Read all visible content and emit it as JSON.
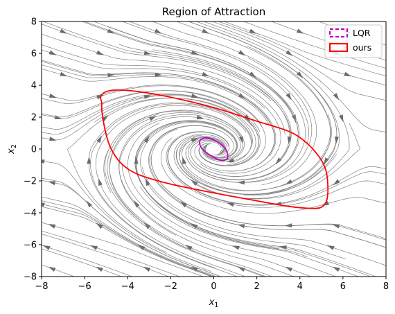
{
  "chart_data": {
    "type": "line",
    "title": "Region of Attraction",
    "xlabel_base": "x",
    "xlabel_sub": "1",
    "ylabel_base": "x",
    "ylabel_sub": "2",
    "xlim": [
      -8,
      8
    ],
    "ylim": [
      -8,
      8
    ],
    "xticks": [
      -8,
      -6,
      -4,
      -2,
      0,
      2,
      4,
      6,
      8
    ],
    "yticks": [
      -8,
      -6,
      -4,
      -2,
      0,
      2,
      4,
      6,
      8
    ],
    "grid": false,
    "legend_position": "top-right",
    "streamlines": {
      "color": "#808080",
      "arrow_color": "#6b6b6b"
    },
    "series": [
      {
        "name": "LQR",
        "color": "#bf00bf",
        "style": "dashed",
        "points": [
          [
            0.65,
            -0.45
          ],
          [
            0.62,
            -0.2
          ],
          [
            0.45,
            0.15
          ],
          [
            0.1,
            0.5
          ],
          [
            -0.3,
            0.7
          ],
          [
            -0.6,
            0.6
          ],
          [
            -0.65,
            0.3
          ],
          [
            -0.5,
            -0.05
          ],
          [
            -0.1,
            -0.45
          ],
          [
            0.3,
            -0.7
          ],
          [
            0.6,
            -0.65
          ],
          [
            0.65,
            -0.45
          ]
        ]
      },
      {
        "name": "ours",
        "color": "#ff0000",
        "style": "solid",
        "points": [
          [
            -5.2,
            2.9
          ],
          [
            -5.25,
            3.3
          ],
          [
            -5.0,
            3.6
          ],
          [
            -4.5,
            3.7
          ],
          [
            -3.5,
            3.6
          ],
          [
            -2.0,
            3.25
          ],
          [
            0.0,
            2.6
          ],
          [
            2.0,
            1.75
          ],
          [
            3.5,
            1.1
          ],
          [
            4.3,
            0.4
          ],
          [
            4.9,
            -0.5
          ],
          [
            5.2,
            -1.3
          ],
          [
            5.3,
            -2.3
          ],
          [
            5.25,
            -3.2
          ],
          [
            5.0,
            -3.65
          ],
          [
            4.5,
            -3.72
          ],
          [
            3.5,
            -3.6
          ],
          [
            2.0,
            -3.25
          ],
          [
            0.0,
            -2.75
          ],
          [
            -2.0,
            -2.2
          ],
          [
            -3.5,
            -1.6
          ],
          [
            -4.3,
            -0.9
          ],
          [
            -4.8,
            0.1
          ],
          [
            -5.05,
            1.2
          ],
          [
            -5.2,
            2.4
          ],
          [
            -5.2,
            2.9
          ]
        ]
      }
    ]
  }
}
